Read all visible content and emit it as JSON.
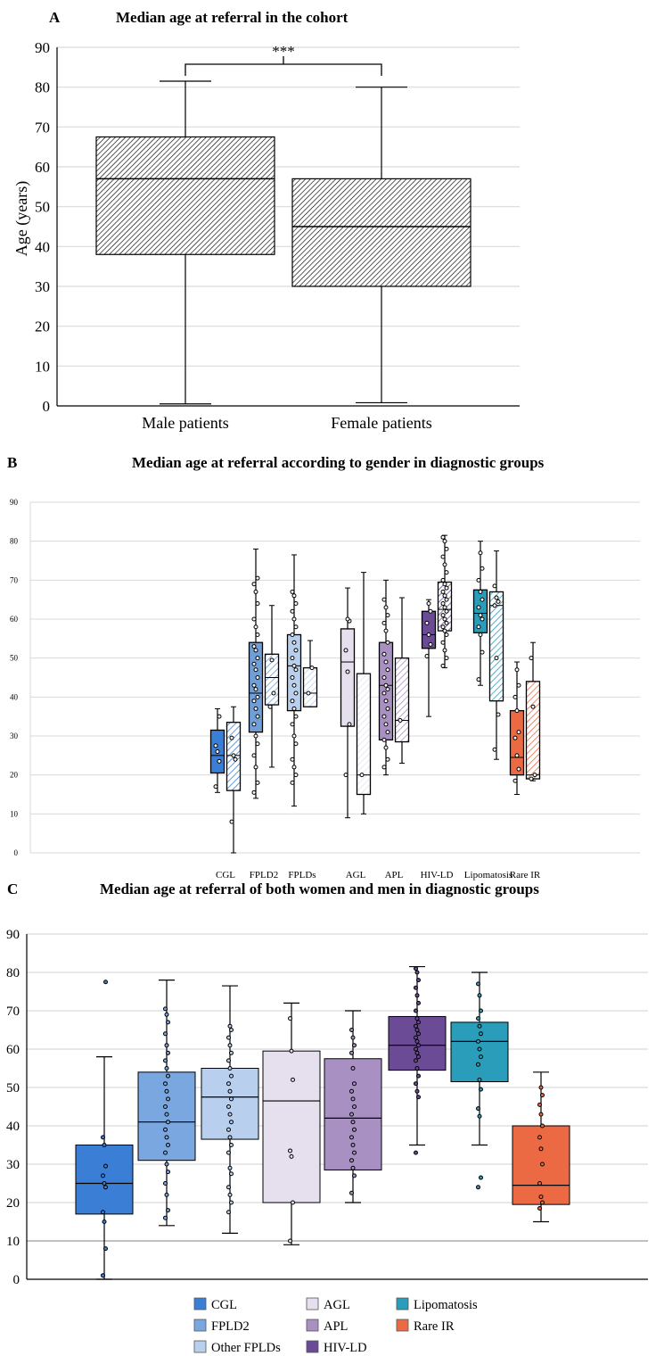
{
  "chart_data": [
    {
      "panel": "A",
      "type": "box",
      "title": "Median age at referral in the cohort",
      "ylabel": "Age (years)",
      "ylim": [
        0,
        90
      ],
      "yticks": [
        0,
        10,
        20,
        30,
        40,
        50,
        60,
        70,
        80,
        90
      ],
      "grid": true,
      "categories": [
        "Male patients",
        "Female patients"
      ],
      "boxes": [
        {
          "category": "Male patients",
          "min": 0.5,
          "q1": 38,
          "median": 57,
          "q3": 67.5,
          "max": 81.5
        },
        {
          "category": "Female patients",
          "min": 0.8,
          "q1": 30,
          "median": 45,
          "q3": 57,
          "max": 80
        }
      ],
      "significance": "***"
    },
    {
      "panel": "B",
      "type": "box",
      "title": "Median age at referral according to gender in diagnostic groups",
      "ylim": [
        0,
        90
      ],
      "yticks": [
        0,
        10,
        20,
        30,
        40,
        50,
        60,
        70,
        80,
        90
      ],
      "grid": true,
      "categories": [
        "CGL",
        "FPLD2",
        "FPLDs",
        "AGL",
        "APL",
        "HIV-LD",
        "Lipomatosis",
        "Rare IR"
      ],
      "colors": [
        "#3a7fd5",
        "#6f9fd8",
        "#b8d0ee",
        "#e6dfee",
        "#a890c3",
        "#6b4a96",
        "#2a9dba",
        "#ec6a43"
      ],
      "pairs": [
        {
          "category": "CGL",
          "first": {
            "min": 15.5,
            "q1": 20.5,
            "median": 25,
            "q3": 31.5,
            "max": 37,
            "points": [
              17,
              23.5,
              26,
              27.5,
              35
            ]
          },
          "second": {
            "min": 0,
            "q1": 16,
            "median": 25,
            "q3": 33.5,
            "max": 37.5,
            "points": [
              8,
              24,
              25,
              29.5
            ]
          }
        },
        {
          "category": "FPLD2",
          "first": {
            "min": 14,
            "q1": 31,
            "median": 41,
            "q3": 54,
            "max": 78,
            "points": [
              15.5,
              18,
              22,
              25,
              28,
              30,
              33,
              35,
              37,
              39,
              40,
              42,
              43,
              45,
              47,
              48.5,
              50,
              52,
              53,
              56,
              58,
              60,
              64,
              67,
              69,
              70.5
            ]
          },
          "second": {
            "min": 22,
            "q1": 38,
            "median": 45,
            "q3": 51,
            "max": 63.5,
            "points": [
              37.5,
              41,
              49.5
            ]
          }
        },
        {
          "category": "FPLDs",
          "first": {
            "min": 12,
            "q1": 36.5,
            "median": 48,
            "q3": 56,
            "max": 76.5,
            "points": [
              18,
              20,
              22,
              24,
              28,
              30,
              33,
              35,
              37,
              39,
              41,
              43,
              45,
              47,
              48,
              50,
              52,
              54,
              56,
              58,
              60,
              62,
              64,
              66,
              67
            ]
          },
          "second": {
            "min": 37.5,
            "q1": 37.5,
            "median": 41,
            "q3": 47.5,
            "max": 54.5,
            "points": [
              41,
              47.5
            ]
          }
        },
        {
          "category": "AGL",
          "first": {
            "min": 9,
            "q1": 32.5,
            "median": 49,
            "q3": 57.5,
            "max": 68,
            "points": [
              20,
              33,
              46.5,
              52,
              59.5,
              60
            ]
          },
          "second": {
            "min": 10,
            "q1": 15,
            "median": 20,
            "q3": 46,
            "max": 72,
            "points": [
              20
            ]
          }
        },
        {
          "category": "APL",
          "first": {
            "min": 20,
            "q1": 29,
            "median": 43,
            "q3": 54,
            "max": 70,
            "points": [
              22,
              24,
              27,
              29,
              31,
              33,
              35,
              37,
              39,
              41,
              42,
              43,
              45,
              47,
              49,
              51,
              54,
              57,
              59,
              61,
              63,
              65
            ]
          },
          "second": {
            "min": 23,
            "q1": 28.5,
            "median": 34,
            "q3": 50,
            "max": 65.5,
            "points": [
              34
            ]
          }
        },
        {
          "category": "HIV-LD",
          "first": {
            "min": 35,
            "q1": 52.5,
            "median": 56,
            "q3": 62,
            "max": 65,
            "points": [
              50.5,
              53.5,
              56,
              59,
              62,
              64
            ]
          },
          "second": {
            "min": 47.5,
            "q1": 57,
            "median": 62.5,
            "q3": 69.5,
            "max": 81.5,
            "points": [
              48,
              50,
              52,
              54,
              56,
              57,
              58,
              59,
              60,
              61,
              62,
              63,
              64,
              65,
              66,
              67,
              68,
              69,
              70,
              72,
              74,
              76,
              78,
              80,
              81
            ]
          }
        },
        {
          "category": "Lipomatosis",
          "first": {
            "min": 43,
            "q1": 56.5,
            "median": 61.5,
            "q3": 67.5,
            "max": 80,
            "points": [
              44.5,
              51.5,
              56,
              58,
              60,
              61,
              63,
              65,
              67,
              70,
              73,
              77
            ]
          },
          "second": {
            "min": 24,
            "q1": 39,
            "median": 63.5,
            "q3": 67,
            "max": 77.5,
            "points": [
              26.5,
              35.5,
              50,
              63.5,
              64.5,
              65.5,
              68.5
            ]
          }
        },
        {
          "category": "Rare IR",
          "first": {
            "min": 15,
            "q1": 20,
            "median": 24.5,
            "q3": 36.5,
            "max": 49,
            "points": [
              18.5,
              21.5,
              25,
              29.5,
              31,
              36.5,
              40,
              43,
              47
            ]
          },
          "second": {
            "min": 18.5,
            "q1": 19,
            "median": 20,
            "q3": 44,
            "max": 54,
            "points": [
              19,
              20,
              37.5,
              50
            ]
          }
        }
      ]
    },
    {
      "panel": "C",
      "type": "box",
      "title": "Median age at referral of both women and men in diagnostic groups",
      "ylim": [
        0,
        90
      ],
      "yticks": [
        0,
        10,
        20,
        30,
        40,
        50,
        60,
        70,
        80,
        90
      ],
      "grid": true,
      "legend_position": "bottom",
      "legend": [
        "CGL",
        "AGL",
        "Lipomatosis",
        "FPLD2",
        "APL",
        "Rare IR",
        "Other FPLDs",
        "HIV-LD"
      ],
      "categories": [
        "CGL",
        "FPLD2",
        "Other FPLDs",
        "AGL",
        "APL",
        "HIV-LD",
        "Lipomatosis",
        "Rare IR"
      ],
      "colors": [
        "#3a7fd5",
        "#7aa7e0",
        "#b8d0ee",
        "#e6dfee",
        "#a890c3",
        "#6b4a96",
        "#2a9dba",
        "#ec6a43"
      ],
      "boxes": [
        {
          "category": "CGL",
          "min": 0,
          "q1": 17,
          "median": 25,
          "q3": 35,
          "max": 58,
          "points": [
            1,
            8,
            15,
            17.5,
            24,
            25,
            27,
            29.5,
            35,
            37,
            77.5
          ]
        },
        {
          "category": "FPLD2",
          "min": 14,
          "q1": 31,
          "median": 41,
          "q3": 54,
          "max": 78,
          "points": [
            16,
            18,
            22,
            25,
            28,
            30,
            33,
            35,
            37,
            39,
            41,
            43,
            45,
            47,
            49,
            51,
            53,
            55,
            57,
            59,
            61,
            64,
            67,
            69,
            70.5
          ]
        },
        {
          "category": "Other FPLDs",
          "min": 12,
          "q1": 36.5,
          "median": 47.5,
          "q3": 55,
          "max": 76.5,
          "points": [
            17.5,
            20,
            22,
            24,
            27.5,
            29,
            33,
            35,
            37,
            39,
            41,
            43,
            45,
            47,
            49,
            51,
            53,
            55,
            57,
            59,
            61,
            63,
            65,
            66
          ]
        },
        {
          "category": "AGL",
          "min": 9,
          "q1": 20,
          "median": 46.5,
          "q3": 59.5,
          "max": 72,
          "points": [
            10,
            20,
            32,
            33.5,
            52,
            59.5,
            68
          ]
        },
        {
          "category": "APL",
          "min": 20,
          "q1": 28.5,
          "median": 42,
          "q3": 57.5,
          "max": 70,
          "points": [
            22.5,
            27,
            29,
            31,
            33,
            35,
            37,
            39,
            41,
            43,
            45,
            47,
            49,
            51,
            55,
            59,
            61,
            63,
            65
          ]
        },
        {
          "category": "HIV-LD",
          "min": 35,
          "q1": 54.5,
          "median": 61,
          "q3": 68.5,
          "max": 81.5,
          "points": [
            33,
            47.5,
            49,
            51,
            53,
            55,
            57,
            58,
            59,
            60,
            61,
            62,
            63,
            64,
            65,
            66,
            67,
            68,
            70,
            72,
            74,
            76,
            78,
            80,
            81
          ]
        },
        {
          "category": "Lipomatosis",
          "min": 35,
          "q1": 51.5,
          "median": 62,
          "q3": 67,
          "max": 80,
          "points": [
            24,
            26.5,
            42.5,
            44.5,
            49.5,
            52,
            56,
            58,
            60,
            62,
            64,
            66,
            68,
            70,
            74,
            77
          ]
        },
        {
          "category": "Rare IR",
          "min": 15,
          "q1": 19.5,
          "median": 24.5,
          "q3": 40,
          "max": 54,
          "points": [
            18.5,
            20,
            21.5,
            25,
            30,
            34,
            37,
            40,
            43,
            45.5,
            48,
            50
          ]
        }
      ]
    }
  ]
}
